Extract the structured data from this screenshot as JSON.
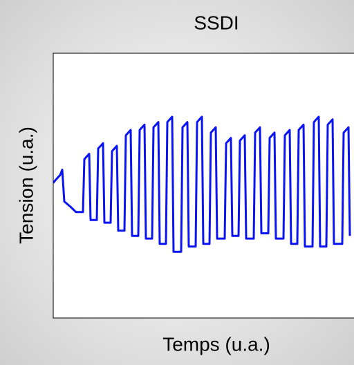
{
  "chart_data": {
    "type": "line",
    "title": "SSDI",
    "xlabel": "Temps (u.a.)",
    "ylabel": "Tension (u.a.)",
    "x": [
      0,
      3,
      10,
      13,
      16,
      25,
      33,
      43,
      45,
      52,
      54,
      63,
      65,
      72,
      74,
      83,
      85,
      92,
      94,
      103,
      105,
      112,
      114,
      123,
      125,
      132,
      134,
      143,
      145,
      152,
      154,
      163,
      165,
      172,
      174,
      185,
      187,
      194,
      196,
      206,
      208,
      215,
      217,
      226,
      228,
      235,
      237,
      248,
      250,
      257,
      259,
      268,
      270,
      277,
      279,
      290,
      292,
      299,
      301,
      311,
      313,
      320,
      322,
      333,
      335,
      342,
      344,
      353,
      355,
      362,
      364,
      375,
      377,
      384,
      386,
      395,
      397,
      404,
      406,
      418,
      420,
      427,
      429
    ],
    "series": [
      {
        "name": "Tension",
        "color": "#0a14f0",
        "values": [
          0.51,
          0.52,
          0.54,
          0.56,
          0.44,
          0.42,
          0.4,
          0.4,
          0.6,
          0.62,
          0.37,
          0.37,
          0.64,
          0.66,
          0.36,
          0.36,
          0.63,
          0.65,
          0.33,
          0.33,
          0.69,
          0.71,
          0.31,
          0.31,
          0.71,
          0.73,
          0.3,
          0.3,
          0.72,
          0.74,
          0.28,
          0.28,
          0.74,
          0.76,
          0.25,
          0.25,
          0.72,
          0.74,
          0.27,
          0.27,
          0.74,
          0.76,
          0.28,
          0.28,
          0.7,
          0.72,
          0.3,
          0.3,
          0.66,
          0.68,
          0.31,
          0.31,
          0.67,
          0.69,
          0.3,
          0.3,
          0.7,
          0.72,
          0.32,
          0.32,
          0.68,
          0.7,
          0.3,
          0.3,
          0.69,
          0.71,
          0.28,
          0.28,
          0.71,
          0.73,
          0.27,
          0.27,
          0.74,
          0.76,
          0.27,
          0.27,
          0.73,
          0.75,
          0.28,
          0.28,
          0.7,
          0.72,
          0.31
        ]
      }
    ],
    "xlim": [
      0,
      435
    ],
    "ylim": [
      0,
      1
    ]
  }
}
